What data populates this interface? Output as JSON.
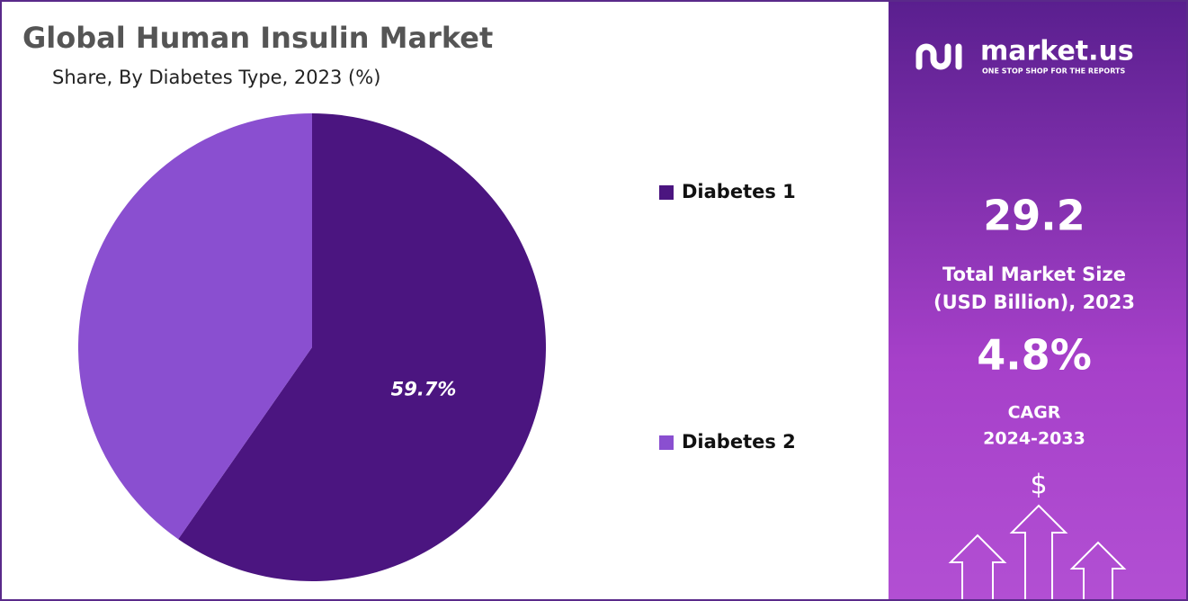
{
  "chart_data": {
    "type": "pie",
    "title": "Global Human Insulin Market",
    "subtitle": "Share, By Diabetes Type, 2023 (%)",
    "categories": [
      "Diabetes 1",
      "Diabetes 2"
    ],
    "values": [
      59.7,
      40.3
    ],
    "value_labels": [
      "59.7%",
      null
    ],
    "colors": [
      "#4b1580",
      "#8a4fd0"
    ],
    "legend": "right"
  },
  "panel": {
    "brand": "market.us",
    "tagline": "ONE STOP SHOP FOR THE REPORTS",
    "market_size": "29.2",
    "market_size_label_1": "Total Market Size",
    "market_size_label_2": "(USD Billion), 2023",
    "cagr": "4.8%",
    "cagr_label": "CAGR",
    "cagr_period": "2024-2033",
    "currency_icon": "$"
  }
}
